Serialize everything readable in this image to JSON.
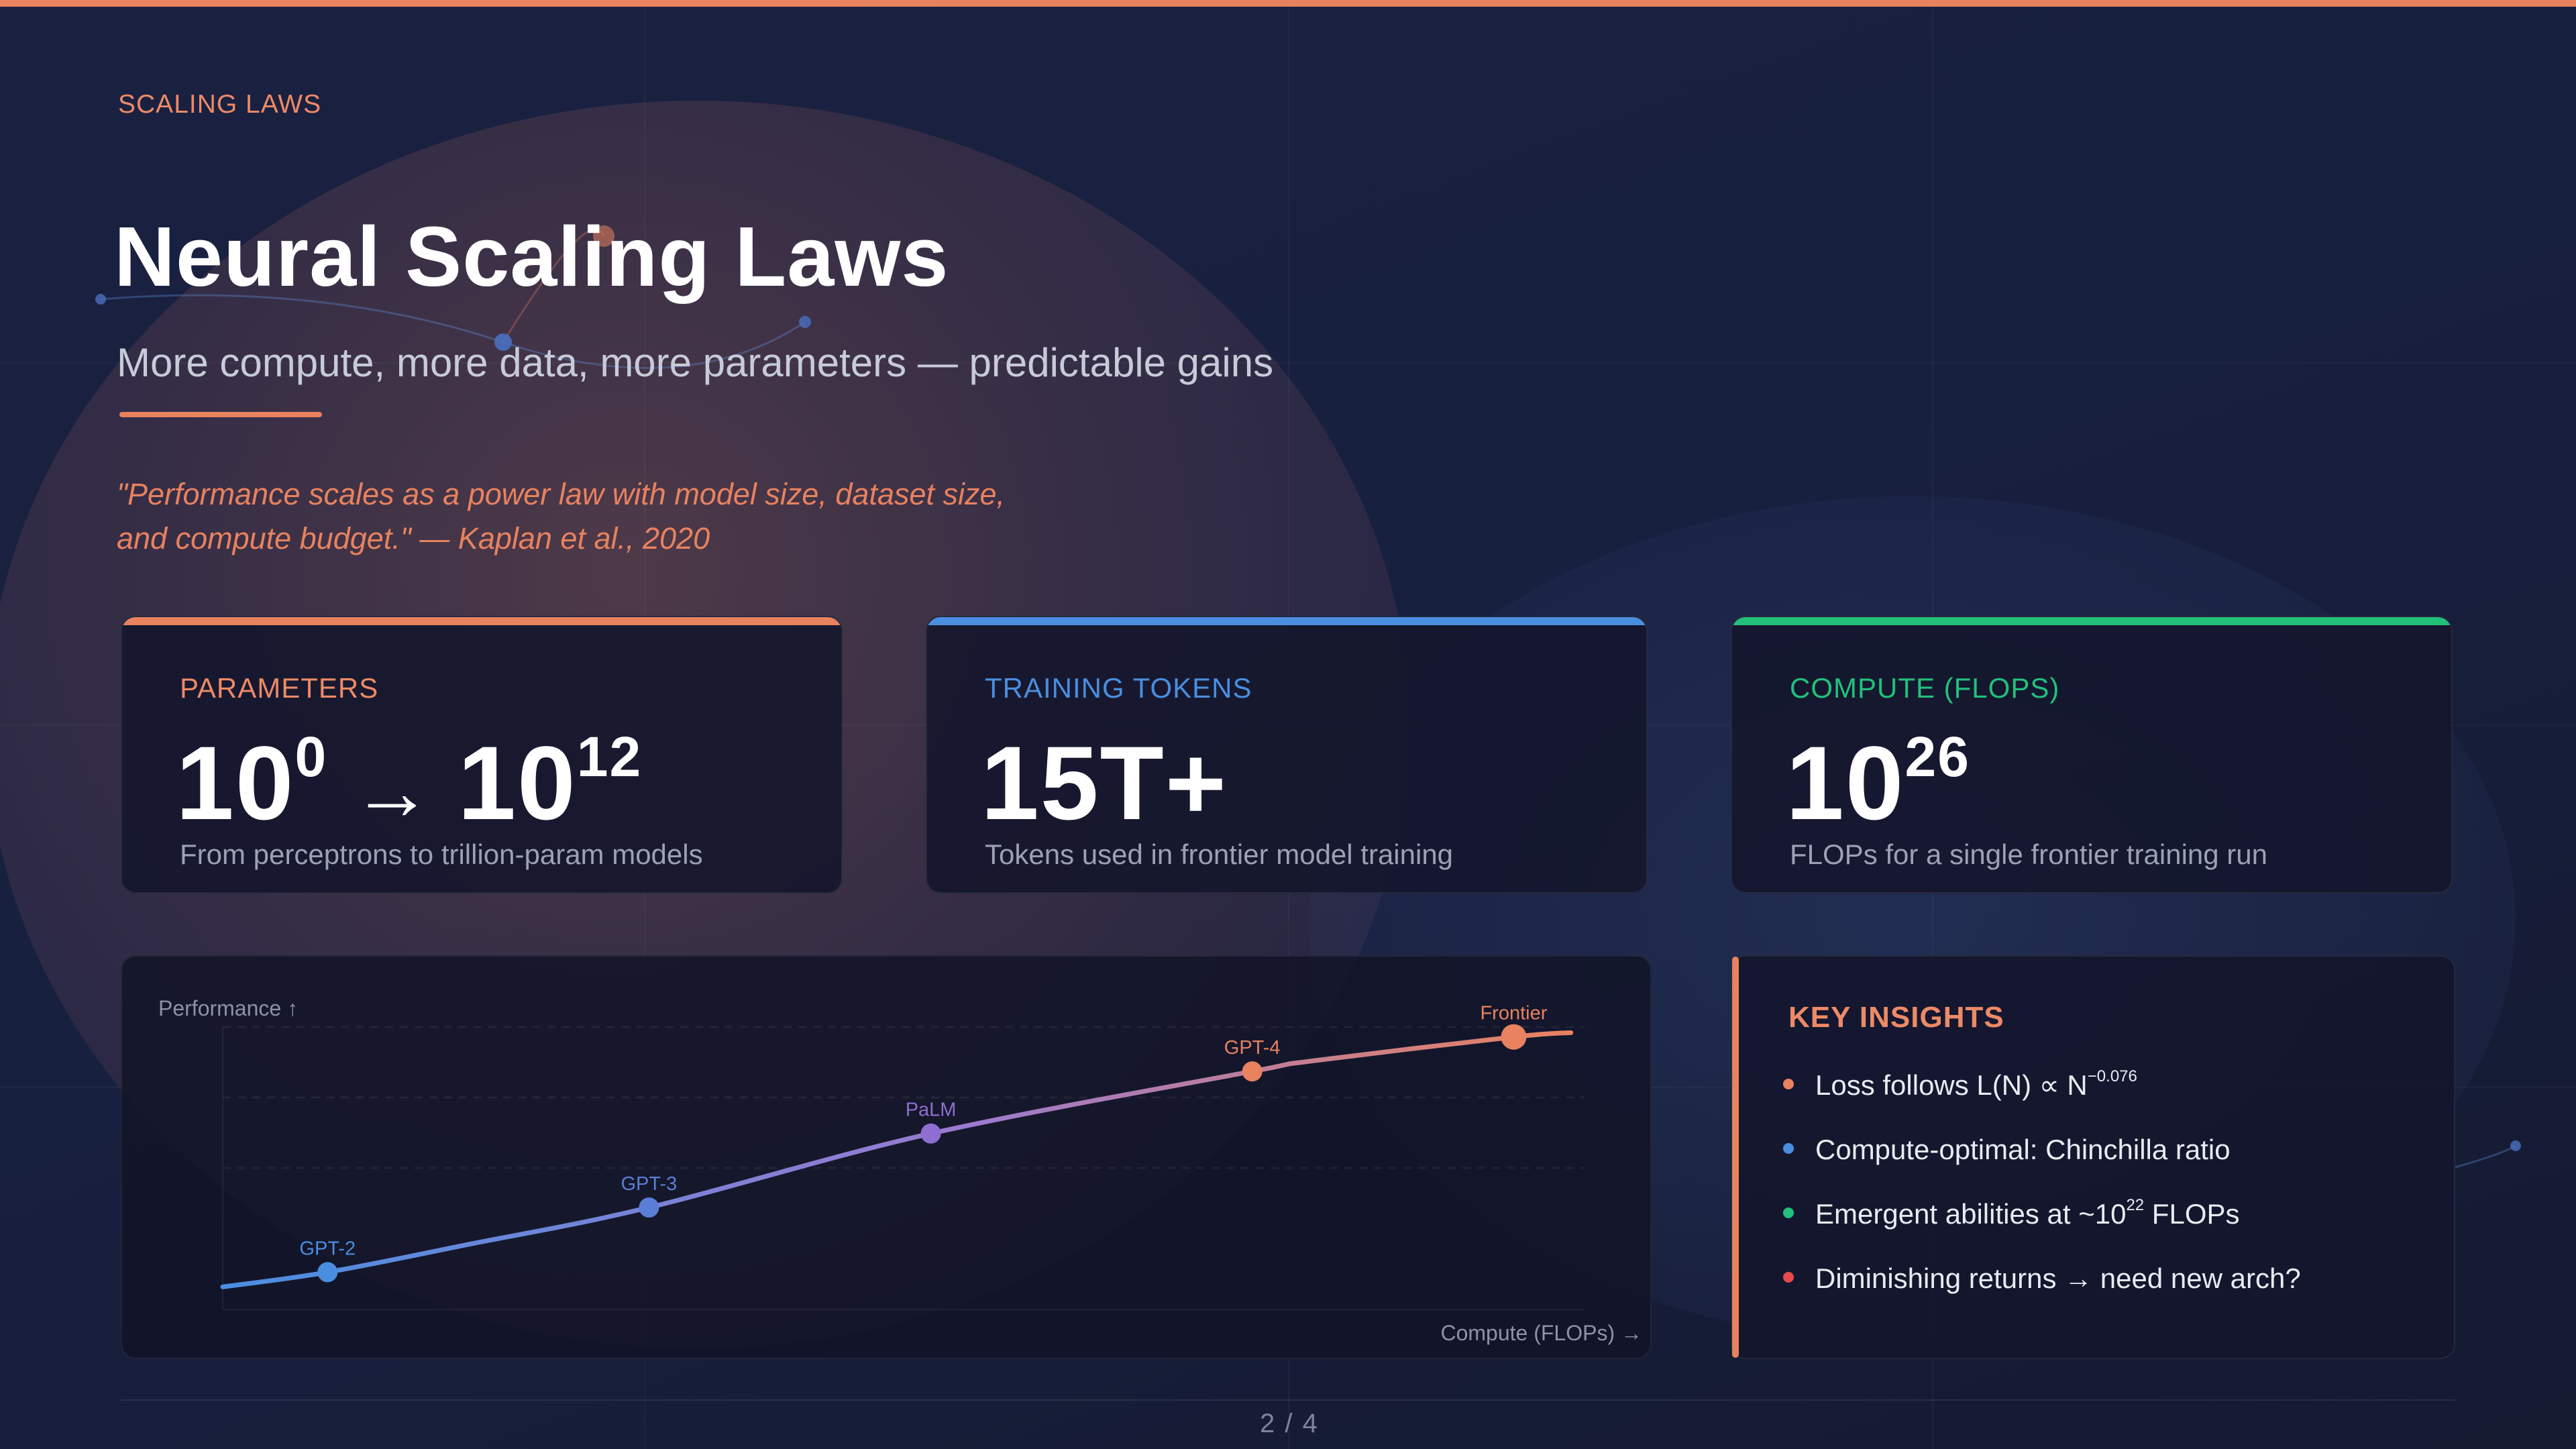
{
  "eyebrow": "SCALING LAWS",
  "title": "Neural Scaling Laws",
  "subtitle": "More compute, more data, more parameters — predictable gains",
  "quote_line1": "\"Performance scales as a power law with model size, dataset size,",
  "quote_line2": "and compute budget.\" — Kaplan et al., 2020",
  "cards": [
    {
      "label": "PARAMETERS",
      "base1": "10",
      "exp1": "0",
      "arrow": "→",
      "base2": "10",
      "exp2": "12",
      "desc": "From perceptrons to trillion-param models",
      "color": "#e8825f"
    },
    {
      "label": "TRAINING TOKENS",
      "value": "15T+",
      "desc": "Tokens used in frontier model training",
      "color": "#4a8ee0"
    },
    {
      "label": "COMPUTE (FLOPS)",
      "base": "10",
      "exp": "26",
      "desc": "FLOPs for a single frontier training run",
      "color": "#22c07a"
    }
  ],
  "chart": {
    "ylabel": "Performance ↑",
    "xlabel": "Compute (FLOPs) →"
  },
  "chart_data": {
    "type": "line",
    "xlabel": "Compute (FLOPs) →",
    "ylabel": "Performance ↑",
    "x_range": [
      0,
      100
    ],
    "y_range": [
      0,
      100
    ],
    "grid": "dashed horizontal",
    "points": [
      {
        "label": "GPT-2",
        "x": 7.7,
        "y": 13.2,
        "color": "#4a8ee0"
      },
      {
        "label": "GPT-3",
        "x": 31.3,
        "y": 36.1,
        "color": "#5a7ed6"
      },
      {
        "label": "PaLM",
        "x": 52.0,
        "y": 62.3,
        "color": "#8e6ed0"
      },
      {
        "label": "GPT-4",
        "x": 75.6,
        "y": 84.3,
        "color": "#e8825f"
      },
      {
        "label": "Frontier",
        "x": 94.8,
        "y": 96.5,
        "color": "#e8825f"
      }
    ],
    "curve": [
      [
        0,
        8
      ],
      [
        7.7,
        13.2
      ],
      [
        18,
        23
      ],
      [
        31.3,
        36.1
      ],
      [
        52.0,
        62.3
      ],
      [
        75.6,
        84.3
      ],
      [
        80,
        88
      ],
      [
        94.8,
        96.5
      ],
      [
        99,
        98
      ]
    ]
  },
  "insights": {
    "title": "KEY INSIGHTS",
    "items": [
      {
        "pre": "Loss follows L(N) ∝ N",
        "sup": "−0.076",
        "post": "",
        "color": "#e8825f"
      },
      {
        "pre": "Compute-optimal: Chinchilla ratio",
        "sup": "",
        "post": "",
        "color": "#4a8ee0"
      },
      {
        "pre": "Emergent abilities at ~10",
        "sup": "22",
        "post": " FLOPs",
        "color": "#22c07a"
      },
      {
        "pre": "Diminishing returns → need new arch?",
        "sup": "",
        "post": "",
        "color": "#e84a4a"
      }
    ]
  },
  "page": "2 / 4",
  "colors": {
    "accent": "#e8825f",
    "blue": "#4a8ee0",
    "green": "#22c07a",
    "red": "#e84a4a",
    "bg": "#161b33"
  }
}
